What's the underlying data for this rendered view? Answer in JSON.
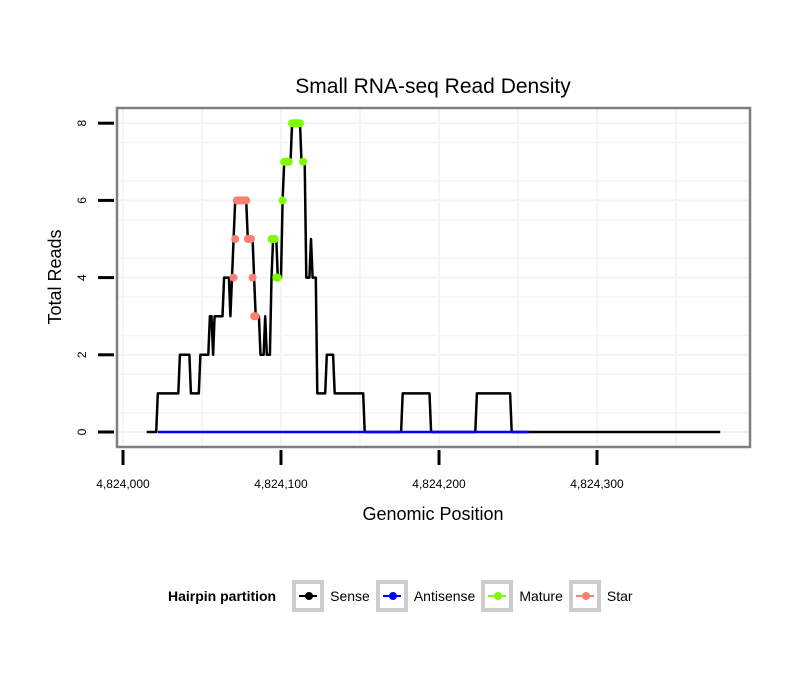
{
  "chart_data": {
    "type": "line",
    "title": "Small RNA-seq Read Density",
    "xlabel": "Genomic Position",
    "ylabel": "Total Reads",
    "xlim": [
      4823990,
      4824395
    ],
    "ylim": [
      -0.4,
      8.4
    ],
    "x_ticks": [
      4824000,
      4824100,
      4824200,
      4824300
    ],
    "x_tick_labels": [
      "4,824,000",
      "4,824,100",
      "4,824,200",
      "4,824,300"
    ],
    "y_ticks": [
      0,
      2,
      4,
      6,
      8
    ],
    "y_tick_labels": [
      "0",
      "2",
      "4",
      "6",
      "8"
    ],
    "grid": true,
    "legend": {
      "title": "Hairpin partition",
      "placement": "bottom",
      "entries": [
        {
          "name": "Sense",
          "color": "#000000"
        },
        {
          "name": "Antisense",
          "color": "#0000ff"
        },
        {
          "name": "Mature",
          "color": "#7cfc00"
        },
        {
          "name": "Star",
          "color": "#fa8072"
        }
      ]
    },
    "series": [
      {
        "name": "Sense",
        "color": "#000000",
        "style": "line",
        "points": [
          [
            4824015,
            0
          ],
          [
            4824021,
            0
          ],
          [
            4824022,
            1
          ],
          [
            4824035,
            1
          ],
          [
            4824036,
            2
          ],
          [
            4824042,
            2
          ],
          [
            4824043,
            1
          ],
          [
            4824048,
            1
          ],
          [
            4824049,
            2
          ],
          [
            4824054,
            2
          ],
          [
            4824055,
            3
          ],
          [
            4824056,
            3
          ],
          [
            4824057,
            2
          ],
          [
            4824058,
            3
          ],
          [
            4824063,
            3
          ],
          [
            4824064,
            4
          ],
          [
            4824067,
            4
          ],
          [
            4824068,
            3
          ],
          [
            4824069,
            4
          ],
          [
            4824070,
            5
          ],
          [
            4824071,
            6
          ],
          [
            4824078,
            6
          ],
          [
            4824079,
            5
          ],
          [
            4824082,
            5
          ],
          [
            4824083,
            4
          ],
          [
            4824084,
            3
          ],
          [
            4824086,
            3
          ],
          [
            4824087,
            2
          ],
          [
            4824089,
            2
          ],
          [
            4824090,
            3
          ],
          [
            4824091,
            2
          ],
          [
            4824093,
            2
          ],
          [
            4824094,
            4
          ],
          [
            4824095,
            5
          ],
          [
            4824097,
            5
          ],
          [
            4824098,
            4
          ],
          [
            4824100,
            4
          ],
          [
            4824101,
            6
          ],
          [
            4824102,
            7
          ],
          [
            4824106,
            7
          ],
          [
            4824107,
            8
          ],
          [
            4824112,
            8
          ],
          [
            4824113,
            7
          ],
          [
            4824115,
            7
          ],
          [
            4824116,
            4
          ],
          [
            4824117,
            4
          ],
          [
            4824118,
            4
          ],
          [
            4824119,
            5
          ],
          [
            4824120,
            4
          ],
          [
            4824122,
            4
          ],
          [
            4824123,
            1
          ],
          [
            4824128,
            1
          ],
          [
            4824129,
            2
          ],
          [
            4824133,
            2
          ],
          [
            4824134,
            1
          ],
          [
            4824152,
            1
          ],
          [
            4824153,
            0
          ],
          [
            4824176,
            0
          ],
          [
            4824177,
            1
          ],
          [
            4824194,
            1
          ],
          [
            4824195,
            0
          ],
          [
            4824223,
            0
          ],
          [
            4824224,
            1
          ],
          [
            4824245,
            1
          ],
          [
            4824246,
            0
          ],
          [
            4824378,
            0
          ]
        ]
      },
      {
        "name": "Antisense",
        "color": "#0000ff",
        "style": "line",
        "points": [
          [
            4824022,
            0
          ],
          [
            4824257,
            0
          ]
        ]
      },
      {
        "name": "Mature",
        "color": "#7cfc00",
        "style": "points",
        "points": [
          [
            4824094,
            5
          ],
          [
            4824095,
            5
          ],
          [
            4824096,
            5
          ],
          [
            4824097,
            4
          ],
          [
            4824098,
            4
          ],
          [
            4824101,
            6
          ],
          [
            4824102,
            7
          ],
          [
            4824103,
            7
          ],
          [
            4824104,
            7
          ],
          [
            4824105,
            7
          ],
          [
            4824107,
            8
          ],
          [
            4824108,
            8
          ],
          [
            4824109,
            8
          ],
          [
            4824110,
            8
          ],
          [
            4824111,
            8
          ],
          [
            4824112,
            8
          ],
          [
            4824114,
            7
          ]
        ]
      },
      {
        "name": "Star",
        "color": "#fa8072",
        "style": "points",
        "points": [
          [
            4824070,
            4
          ],
          [
            4824071,
            5
          ],
          [
            4824072,
            6
          ],
          [
            4824073,
            6
          ],
          [
            4824074,
            6
          ],
          [
            4824075,
            6
          ],
          [
            4824076,
            6
          ],
          [
            4824077,
            6
          ],
          [
            4824078,
            6
          ],
          [
            4824079,
            5
          ],
          [
            4824080,
            5
          ],
          [
            4824081,
            5
          ],
          [
            4824082,
            4
          ],
          [
            4824083,
            3
          ],
          [
            4824084,
            3
          ]
        ]
      }
    ]
  }
}
